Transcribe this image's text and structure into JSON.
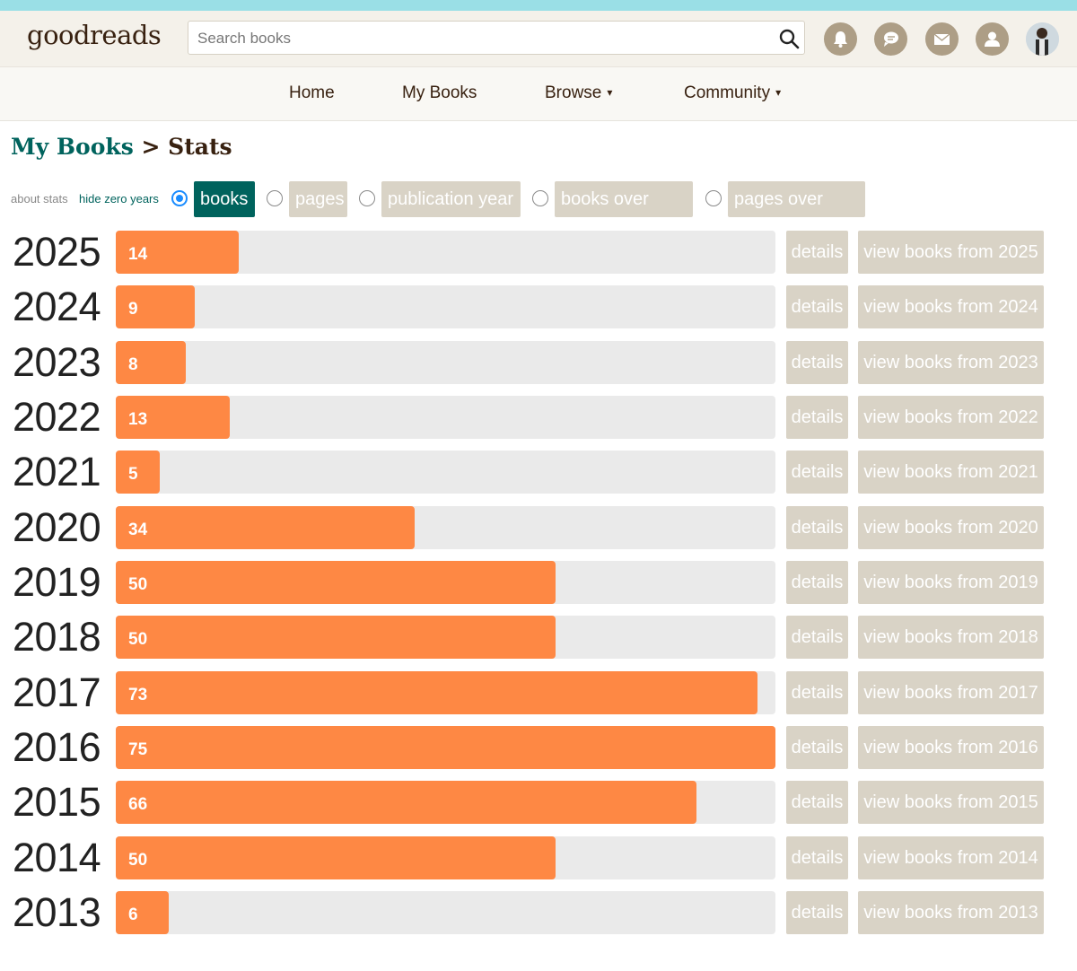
{
  "header": {
    "logo": "goodreads",
    "search_placeholder": "Search books",
    "icons": [
      "search-icon",
      "bell-icon",
      "chat-icon",
      "mail-icon",
      "friends-icon",
      "avatar"
    ]
  },
  "nav": {
    "home": "Home",
    "my_books": "My Books",
    "browse": "Browse",
    "community": "Community",
    "caret": "▾"
  },
  "breadcrumb": {
    "my_books": "My Books",
    "separator": ">",
    "stats": "Stats"
  },
  "controls": {
    "about_stats": "about stats",
    "hide_zero_years": "hide zero years",
    "tabs": [
      {
        "label": "books",
        "selected": true
      },
      {
        "label": "pages",
        "selected": false
      },
      {
        "label": "publication year",
        "selected": false
      },
      {
        "label": "books over time",
        "selected": false
      },
      {
        "label": "pages over time",
        "selected": false
      }
    ]
  },
  "colors": {
    "bar": "#fe8844",
    "track": "#eaeaea",
    "button": "#d9d3c6",
    "accent": "#00635d",
    "header_strip": "#9adfe6"
  },
  "chart_data": {
    "type": "bar",
    "orientation": "horizontal",
    "title": "",
    "categories": [
      "2025",
      "2024",
      "2023",
      "2022",
      "2021",
      "2020",
      "2019",
      "2018",
      "2017",
      "2016",
      "2015",
      "2014",
      "2013"
    ],
    "values": [
      14,
      9,
      8,
      13,
      5,
      34,
      50,
      50,
      73,
      75,
      66,
      50,
      6
    ],
    "xlim": [
      0,
      75
    ],
    "details_label": "details",
    "view_prefix": "view books from "
  }
}
